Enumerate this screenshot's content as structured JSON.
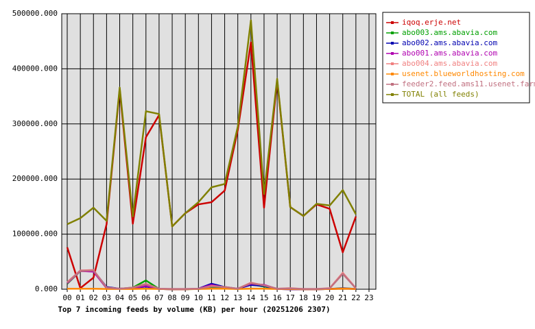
{
  "chart_data": {
    "type": "line",
    "title": "Top 7 incoming feeds by volume (KB) per hour (20251206 2307)",
    "categories": [
      "00",
      "01",
      "02",
      "03",
      "04",
      "05",
      "06",
      "07",
      "08",
      "09",
      "10",
      "11",
      "12",
      "13",
      "14",
      "15",
      "16",
      "17",
      "18",
      "19",
      "20",
      "21",
      "22",
      "23"
    ],
    "ylim": [
      0,
      500000
    ],
    "yticks": [
      {
        "value": 0,
        "label": "0.000"
      },
      {
        "value": 100000,
        "label": "100000.000"
      },
      {
        "value": 200000,
        "label": "200000.000"
      },
      {
        "value": 300000,
        "label": "300000.000"
      },
      {
        "value": 400000,
        "label": "400000.000"
      },
      {
        "value": 500000,
        "label": "500000.000"
      }
    ],
    "grid": true,
    "legend": "right",
    "series": [
      {
        "name": "iqoq.erje.net",
        "color": "#cc0000",
        "values": [
          76000,
          2000,
          21000,
          118000,
          363000,
          119000,
          276000,
          316000,
          114000,
          138000,
          154000,
          158000,
          179000,
          289000,
          448000,
          148000,
          379000,
          149000,
          133000,
          154000,
          146000,
          67000,
          132000,
          null
        ]
      },
      {
        "name": "abo003.ams.abavia.com",
        "color": "#00a000",
        "values": [
          10000,
          33000,
          33000,
          2000,
          1000,
          3000,
          16000,
          500,
          0,
          0,
          500,
          3000,
          2000,
          500,
          9000,
          5000,
          500,
          0,
          0,
          0,
          500,
          2000,
          500,
          null
        ]
      },
      {
        "name": "abo002.ams.abavia.com",
        "color": "#0000b0",
        "values": [
          12000,
          34000,
          34000,
          4000,
          1000,
          2000,
          5000,
          500,
          0,
          0,
          1000,
          10000,
          4000,
          1000,
          8000,
          6000,
          500,
          0,
          0,
          0,
          500,
          1000,
          500,
          null
        ]
      },
      {
        "name": "abo001.ams.abavia.com",
        "color": "#b000b0",
        "values": [
          11000,
          33000,
          32000,
          2000,
          1000,
          2000,
          6000,
          500,
          0,
          0,
          1000,
          8000,
          3000,
          1000,
          10000,
          8000,
          500,
          0,
          0,
          0,
          500,
          1500,
          500,
          null
        ]
      },
      {
        "name": "abo004.ams.abavia.com",
        "color": "#f08080",
        "values": [
          13000,
          34000,
          35000,
          3000,
          1000,
          3000,
          10000,
          1000,
          500,
          500,
          1000,
          6000,
          4000,
          1000,
          12000,
          7000,
          1000,
          2000,
          500,
          500,
          2000,
          30000,
          2000,
          null
        ]
      },
      {
        "name": "usenet.blueworldhosting.com",
        "color": "#ff8800",
        "values": [
          1000,
          1000,
          1000,
          500,
          500,
          500,
          1000,
          500,
          0,
          0,
          500,
          1000,
          1000,
          500,
          1000,
          1000,
          500,
          500,
          0,
          0,
          500,
          1000,
          500,
          null
        ]
      },
      {
        "name": "feeder2.feed.ams11.usenet.farm",
        "color": "#c07080",
        "values": [
          12000,
          33000,
          34000,
          3000,
          1000,
          3000,
          9000,
          1000,
          500,
          500,
          1000,
          5000,
          4000,
          1000,
          11000,
          7000,
          1000,
          1500,
          500,
          500,
          1500,
          28000,
          1500,
          null
        ]
      },
      {
        "name": "TOTAL (all feeds)",
        "color": "#808000",
        "values": [
          118000,
          129000,
          148000,
          124000,
          366000,
          132000,
          323000,
          318000,
          114000,
          138000,
          158000,
          185000,
          191000,
          295000,
          488000,
          173000,
          382000,
          149000,
          133000,
          155000,
          152000,
          180000,
          136000,
          null
        ]
      }
    ]
  }
}
